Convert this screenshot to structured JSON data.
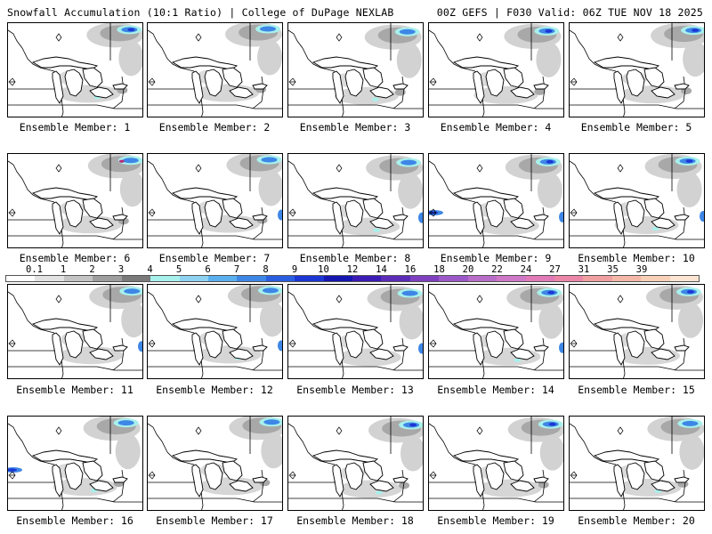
{
  "header": {
    "left": "Snowfall Accumulation (10:1 Ratio) | College of DuPage NEXLAB",
    "right": "00Z GEFS | F030 Valid: 06Z TUE NOV 18 2025"
  },
  "colorbar": {
    "ticks": [
      "0.1",
      "1",
      "2",
      "3",
      "4",
      "5",
      "6",
      "7",
      "8",
      "9",
      "10",
      "12",
      "14",
      "16",
      "18",
      "20",
      "22",
      "24",
      "27",
      "31",
      "35",
      "39"
    ],
    "colors": [
      "#ffffff",
      "#e2e2e2",
      "#c4c4c4",
      "#9e9e9e",
      "#7a7a7a",
      "#a8f0ec",
      "#8ed2f2",
      "#5ab0ee",
      "#3e86e6",
      "#2a5ee0",
      "#1c36d4",
      "#1616b0",
      "#3c1cb4",
      "#5c2cb8",
      "#7e40c0",
      "#9c58c8",
      "#b86ec8",
      "#d078c8",
      "#e07ab8",
      "#ec86a8",
      "#f0a0a0",
      "#f4b8a8",
      "#f8d0b8",
      "#fce4d2"
    ]
  },
  "panel_label_prefix": "Ensemble Member: ",
  "members": [
    {
      "number": "1"
    },
    {
      "number": "2"
    },
    {
      "number": "3"
    },
    {
      "number": "4"
    },
    {
      "number": "5"
    },
    {
      "number": "6"
    },
    {
      "number": "7"
    },
    {
      "number": "8"
    },
    {
      "number": "9"
    },
    {
      "number": "10"
    },
    {
      "number": "11"
    },
    {
      "number": "12"
    },
    {
      "number": "13"
    },
    {
      "number": "14"
    },
    {
      "number": "15"
    },
    {
      "number": "16"
    },
    {
      "number": "17"
    },
    {
      "number": "18"
    },
    {
      "number": "19"
    },
    {
      "number": "20"
    }
  ],
  "colors": {
    "light_gray": "#d2d2d2",
    "mid_gray": "#a8a8a8",
    "dark_gray": "#7e7e7e",
    "cyan": "#a8f0ec",
    "blue": "#3e86e6",
    "dark_blue": "#1c36d4",
    "magenta": "#b82a7a"
  }
}
